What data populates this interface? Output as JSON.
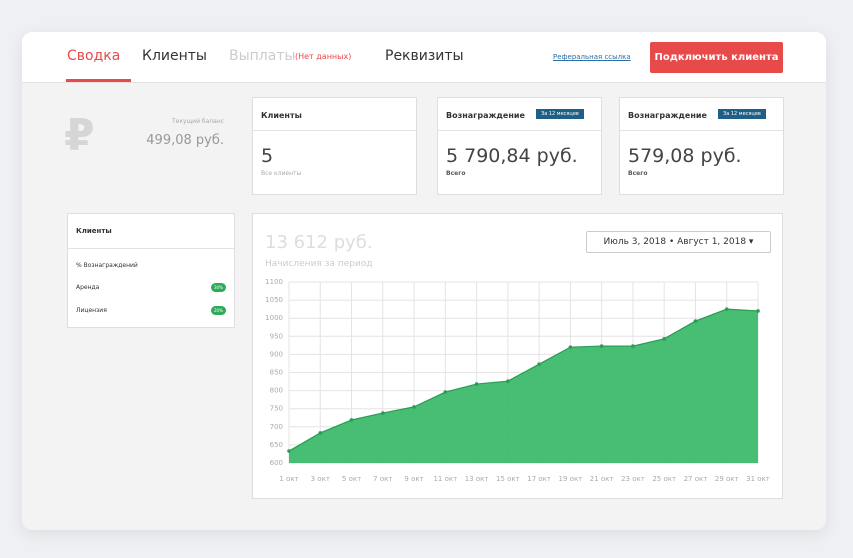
{
  "nav": {
    "tabs": [
      "Сводка",
      "Клиенты",
      "Выплаты",
      "Реквизиты"
    ],
    "no_data": "(Нет данных)",
    "referral_link": "Реферальная ссылка",
    "connect_button": "Подключить клиента"
  },
  "balance": {
    "icon": "₽",
    "label": "Текущий баланс",
    "amount": "499,08 руб."
  },
  "cards": [
    {
      "title": "Клиенты",
      "value": "5",
      "caption": "Все клиенты"
    },
    {
      "title": "Вознаграждение",
      "badge": "За 12 месяцев",
      "value": "5 790,84 руб.",
      "caption": "Всего"
    },
    {
      "title": "Вознаграждение",
      "badge": "За 12 месяцев",
      "value": "579,08 руб.",
      "caption": "Всего"
    }
  ],
  "side_panel": {
    "title": "Клиенты",
    "subtitle": "% Вознаграждений",
    "rows": [
      {
        "label": "Аренда",
        "badge": "30%"
      },
      {
        "label": "Лицензия",
        "badge": "20%"
      }
    ]
  },
  "chart_data": {
    "type": "area",
    "title": "13 612 руб.",
    "subtitle": "Начисления за период",
    "date_range": [
      "Июль 3, 2018",
      "Август 1, 2018"
    ],
    "categories": [
      "1 окт",
      "3 окт",
      "5 окт",
      "7 окт",
      "9 окт",
      "11 окт",
      "13 окт",
      "15 окт",
      "17 окт",
      "19 окт",
      "21 окт",
      "23 окт",
      "25 окт",
      "27 окт",
      "29 окт",
      "31 окт"
    ],
    "series": [
      {
        "color": "#3dbb6c",
        "values": [
          633,
          683,
          719,
          738,
          755,
          796,
          818,
          826,
          873,
          920,
          923,
          923,
          943,
          992,
          1025,
          1020
        ]
      }
    ],
    "ylim": [
      600,
      1100
    ],
    "yticks": [
      600,
      650,
      700,
      750,
      800,
      850,
      900,
      950,
      1000,
      1050,
      1100
    ],
    "grid": true
  }
}
